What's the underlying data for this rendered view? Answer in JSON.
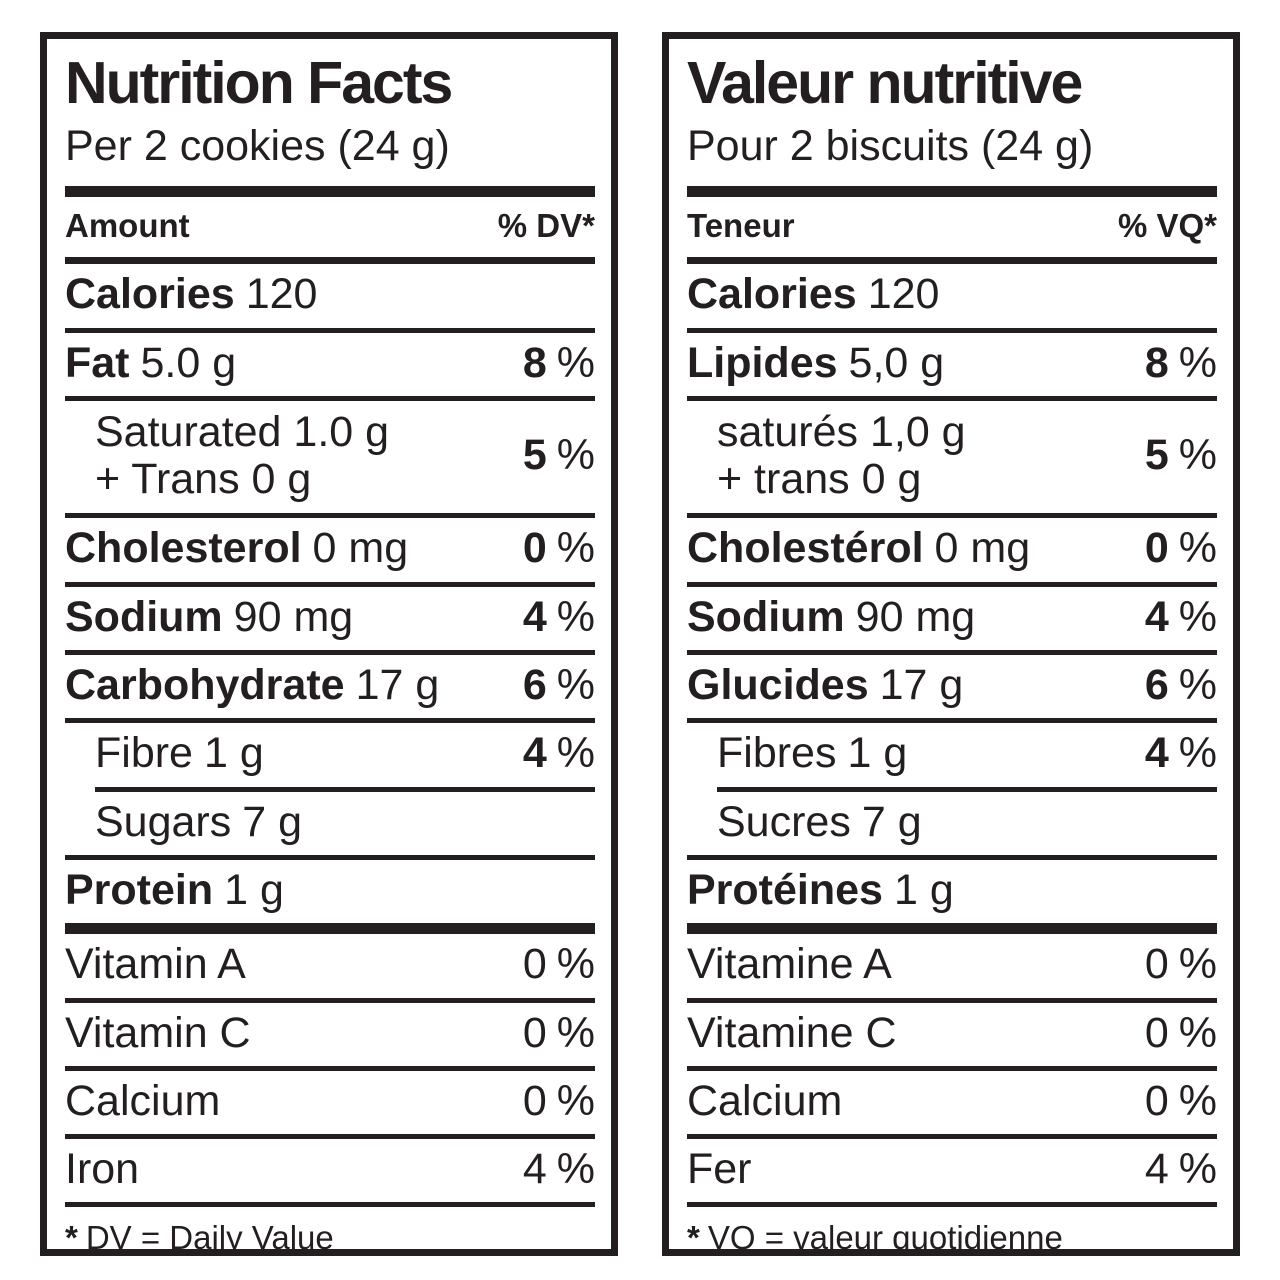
{
  "colors": {
    "ink": "#231f20",
    "background": "#ffffff"
  },
  "en": {
    "title": "Nutrition Facts",
    "serving": "Per 2 cookies (24 g)",
    "header": {
      "amount": "Amount",
      "dv": "% DV*"
    },
    "pct_sign": "%",
    "calories": {
      "label": "Calories",
      "value": "120"
    },
    "fat": {
      "label": "Fat",
      "amount": "5.0 g",
      "pct": "8"
    },
    "saturated": {
      "line1": "Saturated 1.0 g",
      "line2": "+ Trans 0 g",
      "pct": "5"
    },
    "cholesterol": {
      "label": "Cholesterol",
      "amount": "0 mg",
      "pct": "0"
    },
    "sodium": {
      "label": "Sodium",
      "amount": "90 mg",
      "pct": "4"
    },
    "carbohydrate": {
      "label": "Carbohydrate",
      "amount": "17 g",
      "pct": "6"
    },
    "fibre": {
      "label": "Fibre",
      "amount": "1 g",
      "pct": "4"
    },
    "sugars": {
      "label": "Sugars",
      "amount": "7 g"
    },
    "protein": {
      "label": "Protein",
      "amount": "1 g"
    },
    "vitamin_a": {
      "label": "Vitamin A",
      "pct": "0"
    },
    "vitamin_c": {
      "label": "Vitamin C",
      "pct": "0"
    },
    "calcium": {
      "label": "Calcium",
      "pct": "0"
    },
    "iron": {
      "label": "Iron",
      "pct": "4"
    },
    "footnote_symbol": "*",
    "footnote": "DV = Daily Value"
  },
  "fr": {
    "title": "Valeur nutritive",
    "serving": "Pour 2 biscuits (24 g)",
    "header": {
      "amount": "Teneur",
      "dv": "% VQ*"
    },
    "pct_sign": "%",
    "calories": {
      "label": "Calories",
      "value": "120"
    },
    "fat": {
      "label": "Lipides",
      "amount": "5,0 g",
      "pct": "8"
    },
    "saturated": {
      "line1": "saturés 1,0 g",
      "line2": "+ trans 0 g",
      "pct": "5"
    },
    "cholesterol": {
      "label": "Cholestérol",
      "amount": "0 mg",
      "pct": "0"
    },
    "sodium": {
      "label": "Sodium",
      "amount": "90 mg",
      "pct": "4"
    },
    "carbohydrate": {
      "label": "Glucides",
      "amount": "17 g",
      "pct": "6"
    },
    "fibre": {
      "label": "Fibres",
      "amount": "1 g",
      "pct": "4"
    },
    "sugars": {
      "label": "Sucres",
      "amount": "7 g"
    },
    "protein": {
      "label": "Protéines",
      "amount": "1 g"
    },
    "vitamin_a": {
      "label": "Vitamine A",
      "pct": "0"
    },
    "vitamin_c": {
      "label": "Vitamine C",
      "pct": "0"
    },
    "calcium": {
      "label": "Calcium",
      "pct": "0"
    },
    "iron": {
      "label": "Fer",
      "pct": "4"
    },
    "footnote_symbol": "*",
    "footnote": "VQ = valeur quotidienne"
  }
}
